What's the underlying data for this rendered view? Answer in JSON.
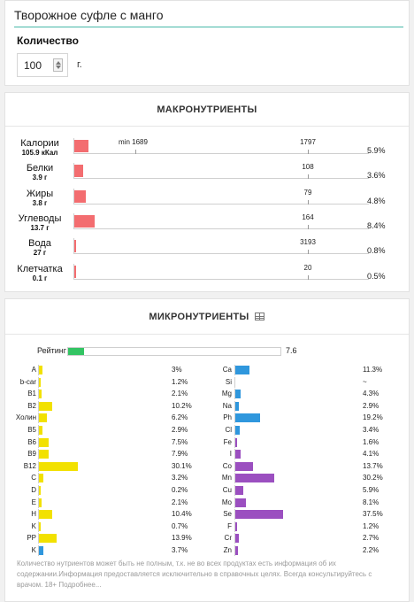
{
  "product": {
    "title": "Творожное суфле с манго"
  },
  "quantity": {
    "label": "Количество",
    "value": "100",
    "unit": "г."
  },
  "macro": {
    "title": "МАКРОНУТРИЕНТЫ",
    "min_label": "min 1689",
    "rows": [
      {
        "name": "Калории",
        "amount": "105.9 кКал",
        "norm": "1797",
        "percent": "5.9%",
        "fraction": 0.059
      },
      {
        "name": "Белки",
        "amount": "3.9 г",
        "norm": "108",
        "percent": "3.6%",
        "fraction": 0.036
      },
      {
        "name": "Жиры",
        "amount": "3.8 г",
        "norm": "79",
        "percent": "4.8%",
        "fraction": 0.048
      },
      {
        "name": "Углеводы",
        "amount": "13.7 г",
        "norm": "164",
        "percent": "8.4%",
        "fraction": 0.084
      },
      {
        "name": "Вода",
        "amount": "27 г",
        "norm": "3193",
        "percent": "0.8%",
        "fraction": 0.008
      },
      {
        "name": "Клетчатка",
        "amount": "0.1 г",
        "norm": "20",
        "percent": "0.5%",
        "fraction": 0.005
      }
    ]
  },
  "micro": {
    "title": "МИКРОНУТРИЕНТЫ",
    "table_icon": "table-icon",
    "rating_label": "Рейтинг",
    "rating_value": "7.6",
    "rating_fraction": 0.076,
    "vitamin_color": "#f2e100",
    "vitamins": [
      {
        "name": "A",
        "percent": "3%",
        "fraction": 0.03,
        "color": "#f2e100"
      },
      {
        "name": "b-car",
        "percent": "1.2%",
        "fraction": 0.012,
        "color": "#f2e100"
      },
      {
        "name": "B1",
        "percent": "2.1%",
        "fraction": 0.021,
        "color": "#f2e100"
      },
      {
        "name": "B2",
        "percent": "10.2%",
        "fraction": 0.102,
        "color": "#f2e100"
      },
      {
        "name": "Холин",
        "percent": "6.2%",
        "fraction": 0.062,
        "color": "#f2e100"
      },
      {
        "name": "B5",
        "percent": "2.9%",
        "fraction": 0.029,
        "color": "#f2e100"
      },
      {
        "name": "B6",
        "percent": "7.5%",
        "fraction": 0.075,
        "color": "#f2e100"
      },
      {
        "name": "B9",
        "percent": "7.9%",
        "fraction": 0.079,
        "color": "#f2e100"
      },
      {
        "name": "B12",
        "percent": "30.1%",
        "fraction": 0.301,
        "color": "#f2e100"
      },
      {
        "name": "C",
        "percent": "3.2%",
        "fraction": 0.032,
        "color": "#f2e100"
      },
      {
        "name": "D",
        "percent": "0.2%",
        "fraction": 0.002,
        "color": "#f2e100"
      },
      {
        "name": "E",
        "percent": "2.1%",
        "fraction": 0.021,
        "color": "#f2e100"
      },
      {
        "name": "H",
        "percent": "10.4%",
        "fraction": 0.104,
        "color": "#f2e100"
      },
      {
        "name": "K",
        "percent": "0.7%",
        "fraction": 0.007,
        "color": "#f2e100"
      },
      {
        "name": "PP",
        "percent": "13.9%",
        "fraction": 0.139,
        "color": "#f2e100"
      },
      {
        "name": "K",
        "percent": "3.7%",
        "fraction": 0.037,
        "color": "#2f97dd"
      }
    ],
    "minerals": [
      {
        "name": "Ca",
        "percent": "11.3%",
        "fraction": 0.113,
        "color": "#2f97dd"
      },
      {
        "name": "Si",
        "percent": "~",
        "fraction": 0,
        "color": "#2f97dd"
      },
      {
        "name": "Mg",
        "percent": "4.3%",
        "fraction": 0.043,
        "color": "#2f97dd"
      },
      {
        "name": "Na",
        "percent": "2.9%",
        "fraction": 0.029,
        "color": "#2f97dd"
      },
      {
        "name": "Ph",
        "percent": "19.2%",
        "fraction": 0.192,
        "color": "#2f97dd"
      },
      {
        "name": "Cl",
        "percent": "3.4%",
        "fraction": 0.034,
        "color": "#2f97dd"
      },
      {
        "name": "Fe",
        "percent": "1.6%",
        "fraction": 0.016,
        "color": "#9b4fc0"
      },
      {
        "name": "I",
        "percent": "4.1%",
        "fraction": 0.041,
        "color": "#9b4fc0"
      },
      {
        "name": "Co",
        "percent": "13.7%",
        "fraction": 0.137,
        "color": "#9b4fc0"
      },
      {
        "name": "Mn",
        "percent": "30.2%",
        "fraction": 0.302,
        "color": "#9b4fc0"
      },
      {
        "name": "Cu",
        "percent": "5.9%",
        "fraction": 0.059,
        "color": "#9b4fc0"
      },
      {
        "name": "Mo",
        "percent": "8.1%",
        "fraction": 0.081,
        "color": "#9b4fc0"
      },
      {
        "name": "Se",
        "percent": "37.5%",
        "fraction": 0.375,
        "color": "#9b4fc0"
      },
      {
        "name": "F",
        "percent": "1.2%",
        "fraction": 0.012,
        "color": "#9b4fc0"
      },
      {
        "name": "Cr",
        "percent": "2.7%",
        "fraction": 0.027,
        "color": "#9b4fc0"
      },
      {
        "name": "Zn",
        "percent": "2.2%",
        "fraction": 0.022,
        "color": "#9b4fc0"
      }
    ],
    "disclaimer": "Количество нутриентов может быть не полным, т.к. не во всех продуктах есть информация об их содержании.Информация предоставляется исключительно в справочных целях. Всегда консультируйтесь с врачом. 18+ Подробнее..."
  }
}
